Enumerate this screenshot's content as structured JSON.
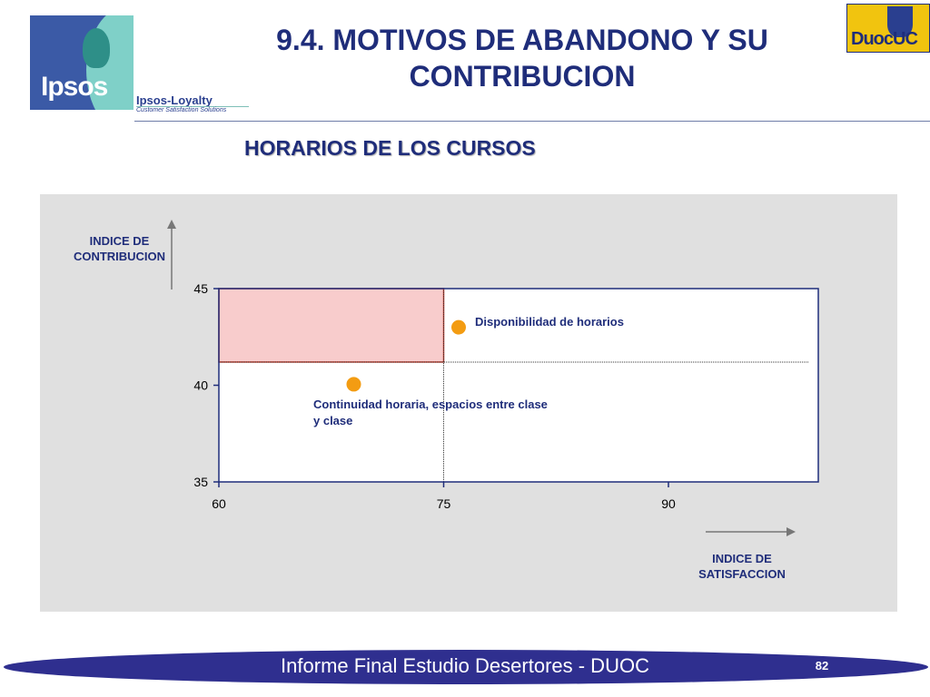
{
  "header": {
    "ipsos_logo_text": "Ipsos",
    "ipsos_loyalty": "Ipsos-Loyalty",
    "ipsos_loyalty_tagline": "Customer Satisfaction Solutions",
    "title": "9.4. MOTIVOS DE ABANDONO Y SU CONTRIBUCION",
    "duoc_logo_text": "DuocUC"
  },
  "section_title": "HORARIOS DE LOS CURSOS",
  "chart_data": {
    "type": "scatter",
    "ylabel": "INDICE DE CONTRIBUCION",
    "xlabel": "INDICE DE SATISFACCION",
    "xlim": [
      60,
      100
    ],
    "ylim": [
      35,
      45
    ],
    "xticks": [
      60,
      75,
      90
    ],
    "yticks": [
      35,
      40,
      45
    ],
    "reference_lines": {
      "x": 75,
      "y": 41.2
    },
    "highlight_region": {
      "x": [
        60,
        75
      ],
      "y": [
        41.2,
        45
      ],
      "color": "#f8cccc",
      "border": "#c0392b"
    },
    "point_color": "#f39c12",
    "points": [
      {
        "label": "Disponibilidad de horarios",
        "x": 76,
        "y": 43
      },
      {
        "label": "Continuidad horaria, espacios entre clase y clase",
        "x": 69,
        "y": 40.05
      }
    ]
  },
  "footer": {
    "text": "Informe Final Estudio Desertores - DUOC",
    "page_number": "82"
  }
}
